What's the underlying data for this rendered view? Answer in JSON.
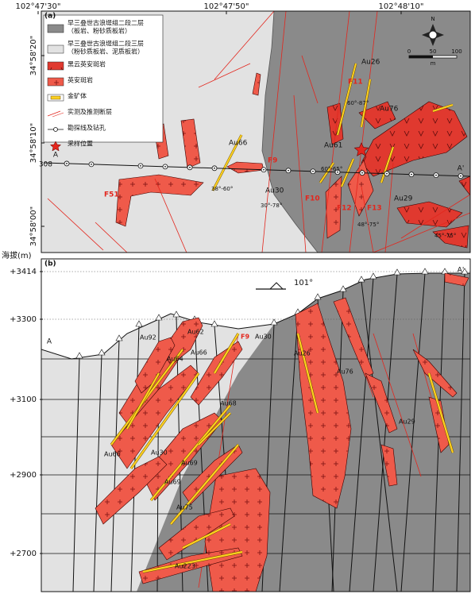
{
  "panel_a": {
    "label": "(a)",
    "longitudes": [
      "102°47'30\"",
      "102°47'50\"",
      "102°48'10\""
    ],
    "latitudes": [
      "34°58'20\"",
      "34°58'10\"",
      "34°58'00\""
    ],
    "legend": [
      {
        "lines": [
          "早三叠世古浪堤组二段二层",
          "（板岩、粉砂质板岩）"
        ]
      },
      {
        "lines": [
          "早三叠世古浪堤组二段三层",
          "（粉砂质板岩、泥质板岩）"
        ]
      },
      {
        "lines": [
          "黑云英安斑岩"
        ]
      },
      {
        "lines": [
          "英安斑岩"
        ]
      },
      {
        "lines": [
          "金矿体"
        ]
      },
      {
        "lines": [
          "实测及推测断层"
        ]
      },
      {
        "lines": [
          "勘探线及钻孔"
        ]
      },
      {
        "lines": [
          "采样位置"
        ]
      }
    ],
    "north": "N",
    "scale": {
      "ticks": [
        "0",
        "50",
        "100"
      ],
      "unit": "m"
    },
    "section": {
      "start": "A",
      "end": "A'",
      "line": "308"
    },
    "labels": [
      "Au26",
      "F11",
      "Au76",
      "60°-87°",
      "Au66",
      "F9",
      "Au61",
      "F51",
      "38°-60°",
      "Au30",
      "30°-78°",
      "F10",
      "60°-65°",
      "F12",
      "F13",
      "Au29",
      "48°-75°",
      "45°-75°"
    ]
  },
  "panel_b": {
    "label": "(b)",
    "axis_title": "海拔(m)",
    "elevations": [
      "+3414",
      "+3300",
      "+3100",
      "+2900",
      "+2700"
    ],
    "azimuth": "101°",
    "section": {
      "start": "A",
      "end": "A'"
    },
    "labels": [
      "Au92",
      "Au62",
      "Au64",
      "Au66",
      "F9",
      "Au30",
      "Au26",
      "Au76",
      "Au68",
      "Au29",
      "Au66",
      "Au30",
      "Au69",
      "Au69",
      "Au75",
      "Au223"
    ]
  }
}
